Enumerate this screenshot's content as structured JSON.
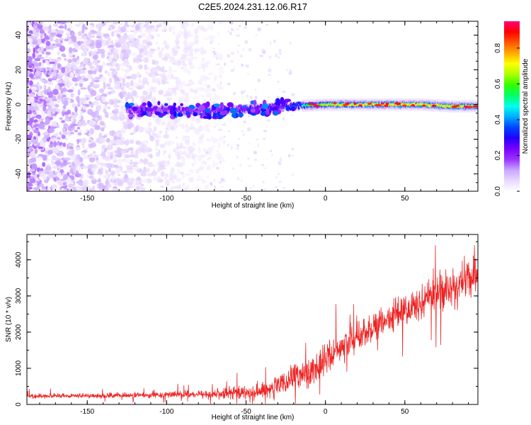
{
  "figure_title": "C2E5.2024.231.12.06.R17",
  "chart_data": [
    {
      "type": "heatmap",
      "title": "",
      "xlabel": "Height of straight line (km)",
      "ylabel": "Frequency (Hz)",
      "xlim": [
        -188,
        96
      ],
      "ylim": [
        -50,
        48
      ],
      "xticks": [
        -150,
        -100,
        -50,
        0,
        50
      ],
      "yticks": [
        -40,
        -20,
        0,
        20,
        40
      ],
      "colorbar": {
        "label": "Normalized spectral amplitude",
        "range": [
          0,
          0.95
        ],
        "ticks": [
          0.0,
          0.2,
          0.4,
          0.6,
          0.8
        ],
        "colors": [
          "#ffffff",
          "#e8d8ff",
          "#c9a6ff",
          "#9933ff",
          "#7a00ff",
          "#2200ff",
          "#0044ff",
          "#00aaff",
          "#00ffee",
          "#00ff66",
          "#33ff00",
          "#aaff00",
          "#ffff00",
          "#ffaa00",
          "#ff5500",
          "#ff0000",
          "#ff0077"
        ]
      },
      "band": {
        "center_frequency_hz": [
          [
            -120,
            -3
          ],
          [
            -100,
            -3
          ],
          [
            -80,
            -4
          ],
          [
            -60,
            -3
          ],
          [
            -40,
            -2
          ],
          [
            -20,
            -1
          ],
          [
            0,
            0
          ],
          [
            20,
            0
          ],
          [
            40,
            0
          ],
          [
            60,
            0
          ],
          [
            80,
            -1
          ],
          [
            96,
            -1
          ]
        ],
        "peak_amplitude": [
          [
            -120,
            0.25
          ],
          [
            -100,
            0.3
          ],
          [
            -80,
            0.3
          ],
          [
            -60,
            0.32
          ],
          [
            -40,
            0.35
          ],
          [
            -20,
            0.42
          ],
          [
            0,
            0.65
          ],
          [
            20,
            0.7
          ],
          [
            40,
            0.72
          ],
          [
            60,
            0.72
          ],
          [
            80,
            0.72
          ],
          [
            96,
            0.7
          ]
        ]
      },
      "noise_region_x": [
        -188,
        -75
      ]
    },
    {
      "type": "line",
      "title": "",
      "xlabel": "Height of straight line (km)",
      "ylabel": "SNR (10 * v/v)",
      "xlim": [
        -188,
        96
      ],
      "ylim": [
        0,
        4700
      ],
      "xticks": [
        -150,
        -100,
        -50,
        0,
        50
      ],
      "yticks": [
        0,
        1000,
        2000,
        3000,
        4000
      ],
      "color": "#ee2222",
      "series": [
        {
          "name": "SNR",
          "envelope": {
            "x": [
              -188,
              -150,
              -120,
              -100,
              -80,
              -60,
              -50,
              -40,
              -30,
              -20,
              -10,
              0,
              10,
              20,
              30,
              40,
              50,
              60,
              70,
              80,
              90,
              96
            ],
            "mean": [
              230,
              240,
              250,
              270,
              280,
              300,
              330,
              350,
              500,
              700,
              900,
              1250,
              1600,
              1850,
              2150,
              2400,
              2600,
              2800,
              3100,
              3250,
              3500,
              3600
            ],
            "spread": [
              90,
              100,
              110,
              130,
              150,
              250,
              350,
              380,
              450,
              550,
              600,
              650,
              650,
              600,
              600,
              600,
              650,
              700,
              800,
              850,
              900,
              900
            ]
          }
        }
      ]
    }
  ]
}
